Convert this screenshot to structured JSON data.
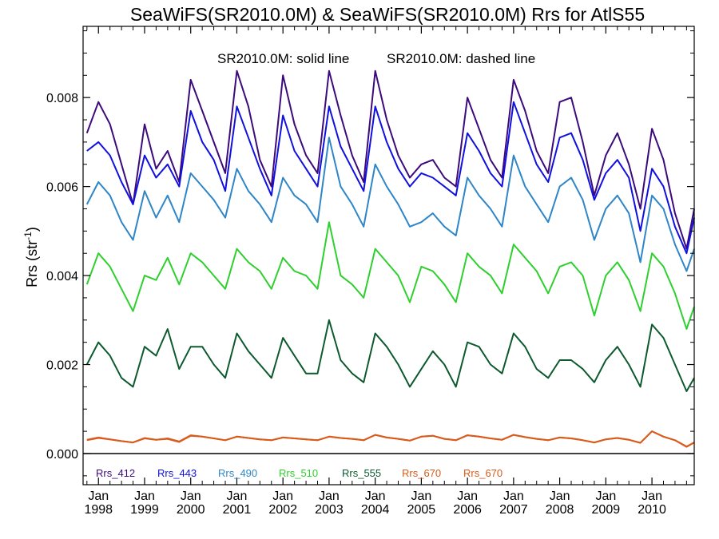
{
  "chart_data": {
    "type": "line",
    "title": "SeaWiFS(SR2010.0M) & SeaWiFS(SR2010.0M)  Rrs for AtlS55",
    "annotation_solid": "SR2010.0M: solid line",
    "annotation_dashed": "SR2010.0M: dashed line",
    "ylabel": "Rrs (str",
    "ylabel_sup": "-1",
    "ylabel_close": ")",
    "ylim": [
      -0.0007,
      0.0096
    ],
    "xlim": [
      "1997-09",
      "2010-12"
    ],
    "y_ticks": [
      "0.000",
      "0.002",
      "0.004",
      "0.006",
      "0.008"
    ],
    "x_tick_month": "Jan",
    "x_tick_years": [
      "1998",
      "1999",
      "2000",
      "2001",
      "2002",
      "2003",
      "2004",
      "2005",
      "2006",
      "2007",
      "2008",
      "2009",
      "2010"
    ],
    "grid": false,
    "legend_placement": "bottom",
    "x_dates": [
      "1997-10",
      "1998-01",
      "1998-04",
      "1998-07",
      "1998-10",
      "1999-01",
      "1999-04",
      "1999-07",
      "1999-10",
      "2000-01",
      "2000-04",
      "2000-07",
      "2000-10",
      "2001-01",
      "2001-04",
      "2001-07",
      "2001-10",
      "2002-01",
      "2002-04",
      "2002-07",
      "2002-10",
      "2003-01",
      "2003-04",
      "2003-07",
      "2003-10",
      "2004-01",
      "2004-04",
      "2004-07",
      "2004-10",
      "2005-01",
      "2005-04",
      "2005-07",
      "2005-10",
      "2006-01",
      "2006-04",
      "2006-07",
      "2006-10",
      "2007-01",
      "2007-04",
      "2007-07",
      "2007-10",
      "2008-01",
      "2008-04",
      "2008-07",
      "2008-10",
      "2009-01",
      "2009-04",
      "2009-07",
      "2009-10",
      "2010-01",
      "2010-04",
      "2010-07",
      "2010-10",
      "2010-12"
    ],
    "series": [
      {
        "name": "Rrs_412",
        "color": "#3c0a7a",
        "values": [
          0.0072,
          0.0079,
          0.0074,
          0.0065,
          0.0056,
          0.0074,
          0.0064,
          0.0068,
          0.0061,
          0.0084,
          0.0077,
          0.007,
          0.0063,
          0.0086,
          0.0078,
          0.0066,
          0.006,
          0.0085,
          0.0074,
          0.0067,
          0.0063,
          0.0086,
          0.0076,
          0.0067,
          0.0061,
          0.0086,
          0.0075,
          0.0067,
          0.0062,
          0.0065,
          0.0066,
          0.0062,
          0.006,
          0.008,
          0.0073,
          0.0066,
          0.0062,
          0.0084,
          0.0077,
          0.0068,
          0.0063,
          0.0079,
          0.008,
          0.007,
          0.0058,
          0.0067,
          0.0072,
          0.0065,
          0.0055,
          0.0073,
          0.0066,
          0.0054,
          0.0046,
          0.0055
        ]
      },
      {
        "name": "Rrs_443",
        "color": "#1010e0",
        "values": [
          0.0068,
          0.007,
          0.0067,
          0.0061,
          0.0056,
          0.0067,
          0.0062,
          0.0065,
          0.006,
          0.0077,
          0.007,
          0.0066,
          0.0059,
          0.0078,
          0.0071,
          0.0064,
          0.0058,
          0.0076,
          0.0068,
          0.0064,
          0.006,
          0.0078,
          0.0069,
          0.0064,
          0.0059,
          0.0078,
          0.007,
          0.0064,
          0.006,
          0.0063,
          0.0062,
          0.006,
          0.0058,
          0.0072,
          0.0068,
          0.0063,
          0.006,
          0.0079,
          0.0072,
          0.0065,
          0.0061,
          0.0071,
          0.0072,
          0.0066,
          0.0057,
          0.0063,
          0.0066,
          0.0062,
          0.005,
          0.0064,
          0.006,
          0.0051,
          0.0045,
          0.0053
        ]
      },
      {
        "name": "Rrs_490",
        "color": "#2e86c8",
        "values": [
          0.0056,
          0.0061,
          0.0058,
          0.0052,
          0.0048,
          0.0059,
          0.0053,
          0.0058,
          0.0052,
          0.0063,
          0.006,
          0.0057,
          0.0053,
          0.0064,
          0.0059,
          0.0056,
          0.0052,
          0.0062,
          0.0058,
          0.0056,
          0.0052,
          0.0071,
          0.006,
          0.0056,
          0.0051,
          0.0065,
          0.006,
          0.0056,
          0.0051,
          0.0052,
          0.0054,
          0.0051,
          0.0049,
          0.0062,
          0.0058,
          0.0055,
          0.0051,
          0.0067,
          0.006,
          0.0056,
          0.0052,
          0.006,
          0.0062,
          0.0057,
          0.0048,
          0.0055,
          0.0058,
          0.0054,
          0.0043,
          0.0058,
          0.0055,
          0.0047,
          0.0041,
          0.0046
        ]
      },
      {
        "name": "Rrs_510",
        "color": "#2ed02e",
        "values": [
          0.0038,
          0.0045,
          0.0042,
          0.0037,
          0.0032,
          0.004,
          0.0039,
          0.0044,
          0.0038,
          0.0045,
          0.0043,
          0.004,
          0.0037,
          0.0046,
          0.0043,
          0.0041,
          0.0037,
          0.0044,
          0.0041,
          0.004,
          0.0037,
          0.0052,
          0.004,
          0.0038,
          0.0035,
          0.0046,
          0.0043,
          0.004,
          0.0034,
          0.0042,
          0.0041,
          0.0038,
          0.0034,
          0.0045,
          0.0042,
          0.004,
          0.0036,
          0.0047,
          0.0044,
          0.0041,
          0.0036,
          0.0042,
          0.0043,
          0.004,
          0.0031,
          0.004,
          0.0043,
          0.0039,
          0.0032,
          0.0045,
          0.0042,
          0.0036,
          0.0028,
          0.0033
        ]
      },
      {
        "name": "Rrs_555",
        "color": "#0c5a2e",
        "values": [
          0.002,
          0.0025,
          0.0022,
          0.0017,
          0.0015,
          0.0024,
          0.0022,
          0.0028,
          0.0019,
          0.0024,
          0.0024,
          0.002,
          0.0017,
          0.0027,
          0.0023,
          0.002,
          0.0017,
          0.0026,
          0.0022,
          0.0018,
          0.0018,
          0.003,
          0.0021,
          0.0018,
          0.0016,
          0.0027,
          0.0024,
          0.002,
          0.0015,
          0.0019,
          0.0023,
          0.002,
          0.0015,
          0.0025,
          0.0024,
          0.002,
          0.0018,
          0.0027,
          0.0024,
          0.0019,
          0.0017,
          0.0021,
          0.0021,
          0.0019,
          0.0016,
          0.0021,
          0.0024,
          0.002,
          0.0015,
          0.0029,
          0.0026,
          0.002,
          0.0014,
          0.0017
        ]
      },
      {
        "name": "Rrs_670",
        "color": "#d95a1a",
        "values": [
          0.0003,
          0.00035,
          0.00032,
          0.00028,
          0.00025,
          0.00034,
          0.00031,
          0.00033,
          0.00026,
          0.0004,
          0.00038,
          0.00034,
          0.0003,
          0.00038,
          0.00035,
          0.00032,
          0.0003,
          0.00036,
          0.00034,
          0.00032,
          0.0003,
          0.00038,
          0.00035,
          0.00033,
          0.0003,
          0.00042,
          0.00036,
          0.00033,
          0.00029,
          0.00038,
          0.0004,
          0.00033,
          0.0003,
          0.00041,
          0.00038,
          0.00034,
          0.00031,
          0.00042,
          0.00037,
          0.00033,
          0.0003,
          0.00036,
          0.00034,
          0.0003,
          0.00025,
          0.00032,
          0.00035,
          0.00031,
          0.00024,
          0.0005,
          0.00038,
          0.0003,
          0.00015,
          0.00025
        ]
      },
      {
        "name": "Rrs_670",
        "color": "#d95a1a",
        "values": [
          0.00031,
          0.00036,
          0.00032,
          0.00028,
          0.00025,
          0.00035,
          0.00031,
          0.00034,
          0.00027,
          0.00041,
          0.00038,
          0.00034,
          0.0003,
          0.00038,
          0.00035,
          0.00032,
          0.0003,
          0.00036,
          0.00034,
          0.00032,
          0.0003,
          0.00038,
          0.00035,
          0.00033,
          0.0003,
          0.00042,
          0.00036,
          0.00033,
          0.00029,
          0.00038,
          0.0004,
          0.00033,
          0.0003,
          0.00041,
          0.00038,
          0.00034,
          0.00031,
          0.00042,
          0.00037,
          0.00033,
          0.0003,
          0.00036,
          0.00034,
          0.0003,
          0.00025,
          0.00032,
          0.00035,
          0.00031,
          0.00024,
          0.0005,
          0.00038,
          0.0003,
          0.00016,
          0.00025
        ]
      }
    ]
  }
}
